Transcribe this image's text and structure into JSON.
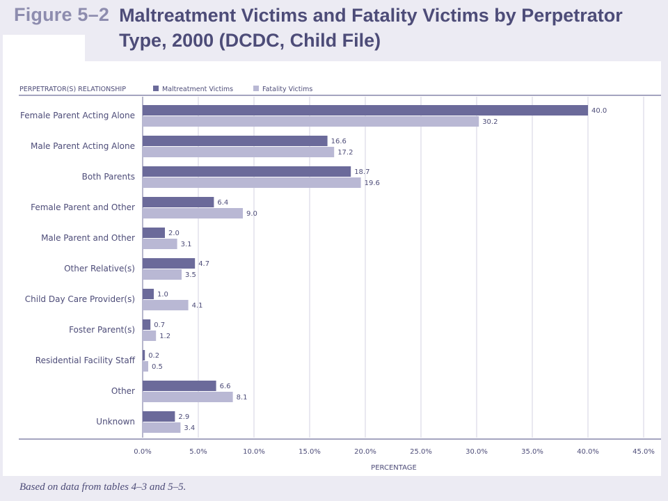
{
  "header": {
    "figure_label": "Figure 5–2",
    "title": "Maltreatment Victims and Fatality Victims by Perpetrator Type, 2000 (DCDC, Child File)"
  },
  "footnote": "Based on data from tables 4–3 and 5–5.",
  "colors": {
    "maltreatment": "#6b6a9a",
    "fatality": "#b9b8d4",
    "axis": "#6e6d99",
    "grid": "#d3d2e2",
    "text": "#4d4c78"
  },
  "chart_data": {
    "type": "bar",
    "orientation": "horizontal",
    "legend_title": "PERPETRATOR(S) RELATIONSHIP",
    "legend_position": "top-left",
    "categories": [
      "Female Parent Acting Alone",
      "Male Parent Acting Alone",
      "Both Parents",
      "Female Parent and Other",
      "Male Parent and Other",
      "Other Relative(s)",
      "Child Day Care Provider(s)",
      "Foster Parent(s)",
      "Residential Facility Staff",
      "Other",
      "Unknown"
    ],
    "series": [
      {
        "name": "Maltreatment Victims",
        "values": [
          40.0,
          16.6,
          18.7,
          6.4,
          2.0,
          4.7,
          1.0,
          0.7,
          0.2,
          6.6,
          2.9
        ]
      },
      {
        "name": "Fatality Victims",
        "values": [
          30.2,
          17.2,
          19.6,
          9.0,
          3.1,
          3.5,
          4.1,
          1.2,
          0.5,
          8.1,
          3.4
        ]
      }
    ],
    "xlabel": "PERCENTAGE",
    "ylabel": "",
    "xlim": [
      0,
      45
    ],
    "xticks": [
      "0.0%",
      "5.0%",
      "10.0%",
      "15.0%",
      "20.0%",
      "25.0%",
      "30.0%",
      "35.0%",
      "40.0%",
      "45.0%"
    ],
    "grid": true
  }
}
